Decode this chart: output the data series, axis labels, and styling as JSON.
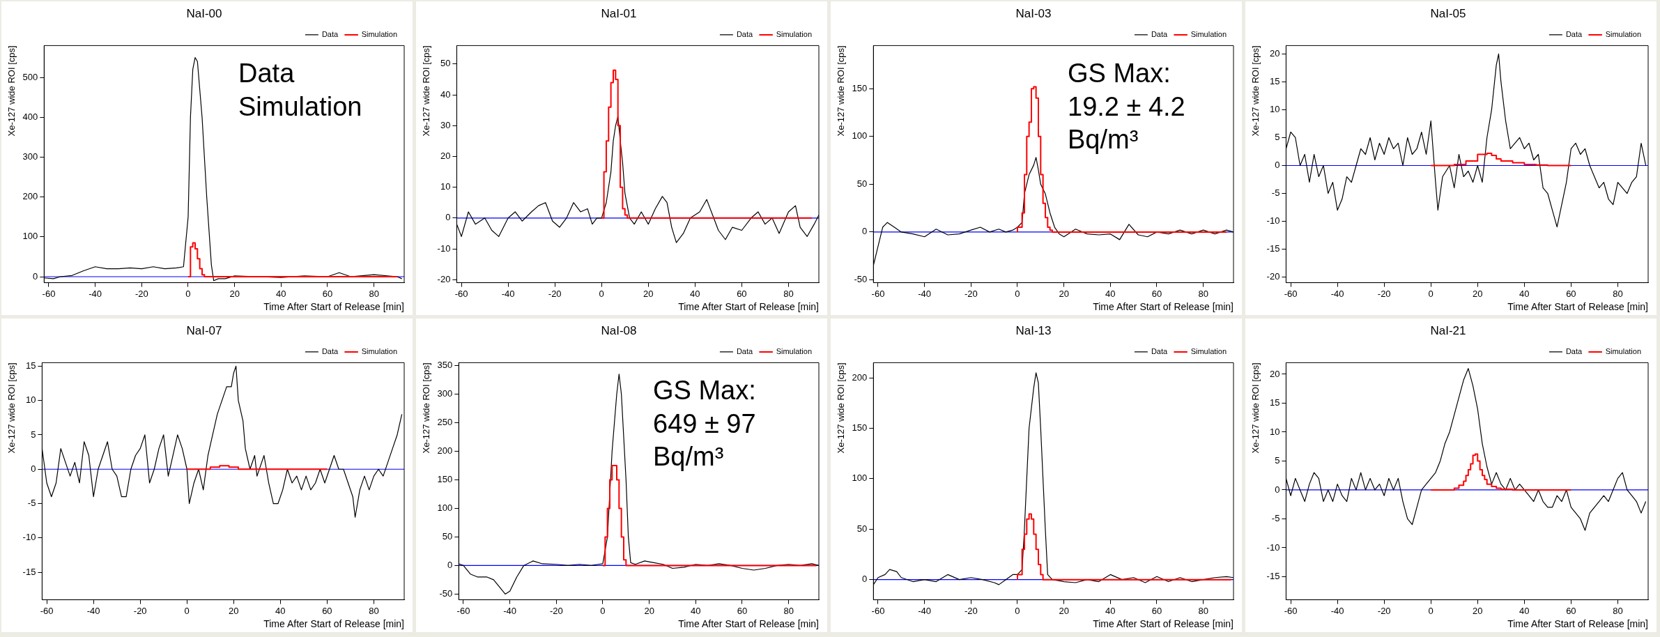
{
  "chart_data": [
    {
      "type": "line",
      "title": "NaI-00",
      "xlabel": "Time After Start of Release [min]",
      "ylabel": "Xe-127 wide ROI [cps]",
      "xlim": [
        -62,
        93
      ],
      "xticks": [
        -60,
        -40,
        -20,
        0,
        20,
        40,
        60,
        80
      ],
      "ylim": [
        -15,
        580
      ],
      "yticks": [
        0,
        100,
        200,
        300,
        400,
        500
      ],
      "grid": false,
      "legend": "top right",
      "marker": "none",
      "annotations": [
        "Data",
        "Simulation"
      ],
      "ref_lines": [
        {
          "axis": "y",
          "value": 0,
          "color": "#0000ff"
        }
      ],
      "series": [
        {
          "name": "Data",
          "color": "#000000",
          "type": "line",
          "x": [
            -62,
            -58,
            -55,
            -50,
            -45,
            -40,
            -35,
            -30,
            -25,
            -20,
            -15,
            -10,
            -5,
            -2,
            0,
            1,
            2,
            3,
            4,
            6,
            8,
            10,
            11,
            13,
            16,
            20,
            30,
            40,
            50,
            60,
            65,
            70,
            80,
            90,
            92
          ],
          "values": [
            -3,
            -5,
            0,
            3,
            15,
            25,
            20,
            20,
            22,
            20,
            25,
            20,
            22,
            25,
            150,
            400,
            520,
            550,
            540,
            400,
            200,
            30,
            -10,
            -5,
            -5,
            2,
            0,
            -2,
            2,
            0,
            10,
            0,
            5,
            0,
            -5
          ]
        },
        {
          "name": "Simulation",
          "color": "#ff0000",
          "type": "step",
          "x": [
            0,
            1,
            2,
            3,
            4,
            5,
            6,
            7,
            8,
            90
          ],
          "values": [
            0,
            0,
            75,
            85,
            70,
            45,
            20,
            5,
            0,
            0
          ]
        }
      ]
    },
    {
      "type": "line",
      "title": "NaI-01",
      "xlabel": "Time After Start of Release [min]",
      "ylabel": "Xe-127 wide ROI [cps]",
      "xlim": [
        -62,
        93
      ],
      "xticks": [
        -60,
        -40,
        -20,
        0,
        20,
        40,
        60,
        80
      ],
      "ylim": [
        -21,
        56
      ],
      "yticks": [
        -20,
        -10,
        0,
        10,
        20,
        30,
        40,
        50
      ],
      "grid": false,
      "legend": "top right",
      "marker": "none",
      "ref_lines": [
        {
          "axis": "y",
          "value": 0,
          "color": "#0000ff"
        }
      ],
      "series": [
        {
          "name": "Data",
          "color": "#000000",
          "type": "line",
          "x": [
            -62,
            -60,
            -57,
            -54,
            -50,
            -47,
            -44,
            -40,
            -37,
            -34,
            -30,
            -27,
            -24,
            -21,
            -18,
            -15,
            -12,
            -9,
            -6,
            -4,
            -2,
            0,
            2,
            4,
            5,
            6,
            7,
            8,
            9,
            10,
            12,
            14,
            17,
            20,
            23,
            26,
            28,
            30,
            32,
            35,
            38,
            42,
            45,
            48,
            50,
            53,
            56,
            60,
            64,
            67,
            70,
            73,
            76,
            80,
            83,
            85,
            88,
            91,
            93
          ],
          "values": [
            -2,
            -6,
            2,
            -2,
            0,
            -4,
            -6,
            0,
            2,
            -1,
            2,
            4,
            5,
            -1,
            -3,
            0,
            5,
            2,
            3,
            -2,
            0,
            0,
            5,
            15,
            25,
            30,
            33,
            25,
            18,
            8,
            0,
            -2,
            2,
            -2,
            3,
            7,
            5,
            -3,
            -8,
            -5,
            0,
            2,
            6,
            0,
            -4,
            -7,
            -3,
            -4,
            0,
            2,
            -2,
            0,
            -5,
            2,
            4,
            -3,
            -6,
            -2,
            1
          ]
        },
        {
          "name": "Simulation",
          "color": "#ff0000",
          "type": "step",
          "x": [
            0,
            1,
            2,
            3,
            4,
            5,
            6,
            7,
            8,
            9,
            10,
            11,
            12,
            90
          ],
          "values": [
            0,
            0,
            15,
            25,
            36,
            44,
            48,
            45,
            30,
            10,
            3,
            1,
            0,
            0
          ]
        }
      ]
    },
    {
      "type": "line",
      "title": "NaI-03",
      "xlabel": "Time After Start of Release [min]",
      "ylabel": "Xe-127 wide ROI [cps]",
      "xlim": [
        -62,
        93
      ],
      "xticks": [
        -60,
        -40,
        -20,
        0,
        20,
        40,
        60,
        80
      ],
      "ylim": [
        -53,
        195
      ],
      "yticks": [
        -50,
        0,
        50,
        100,
        150
      ],
      "grid": false,
      "legend": "top right",
      "marker": "none",
      "annotations": [
        "GS Max: 19.2 ± 4.2 Bq/m³"
      ],
      "ref_lines": [
        {
          "axis": "y",
          "value": 0,
          "color": "#0000ff"
        }
      ],
      "series": [
        {
          "name": "Data",
          "color": "#000000",
          "type": "line",
          "x": [
            -62,
            -60,
            -58,
            -56,
            -53,
            -50,
            -45,
            -40,
            -35,
            -30,
            -25,
            -20,
            -16,
            -12,
            -8,
            -5,
            -2,
            0,
            2,
            3,
            5,
            7,
            8,
            9,
            10,
            12,
            14,
            16,
            18,
            20,
            25,
            30,
            35,
            40,
            44,
            48,
            52,
            56,
            60,
            65,
            70,
            75,
            80,
            85,
            90,
            93
          ],
          "values": [
            -35,
            -15,
            5,
            10,
            5,
            0,
            -2,
            -5,
            3,
            -3,
            -2,
            2,
            5,
            0,
            3,
            0,
            2,
            5,
            10,
            40,
            60,
            70,
            78,
            65,
            50,
            40,
            20,
            5,
            -2,
            -5,
            3,
            -2,
            -3,
            -2,
            -8,
            8,
            -3,
            -5,
            0,
            -2,
            2,
            -2,
            2,
            -2,
            2,
            0
          ]
        },
        {
          "name": "Simulation",
          "color": "#ff0000",
          "type": "step",
          "x": [
            0,
            2,
            3,
            4,
            5,
            6,
            7,
            8,
            9,
            10,
            11,
            12,
            13,
            14,
            15,
            16,
            90
          ],
          "values": [
            0,
            5,
            20,
            60,
            100,
            115,
            150,
            152,
            140,
            100,
            60,
            30,
            15,
            5,
            2,
            0,
            0
          ]
        }
      ]
    },
    {
      "type": "line",
      "title": "NaI-05",
      "xlabel": "Time After Start of Release [min]",
      "ylabel": "Xe-127 wide ROI [cps]",
      "xlim": [
        -62,
        93
      ],
      "xticks": [
        -60,
        -40,
        -20,
        0,
        20,
        40,
        60,
        80
      ],
      "ylim": [
        -21,
        21.5
      ],
      "yticks": [
        -20,
        -15,
        -10,
        -5,
        0,
        5,
        10,
        15,
        20
      ],
      "grid": false,
      "legend": "top right",
      "marker": "none",
      "ref_lines": [
        {
          "axis": "y",
          "value": 0,
          "color": "#0000ff"
        }
      ],
      "series": [
        {
          "name": "Data",
          "color": "#000000",
          "type": "line",
          "x": [
            -62,
            -60,
            -58,
            -56,
            -54,
            -52,
            -50,
            -48,
            -46,
            -44,
            -42,
            -40,
            -38,
            -36,
            -34,
            -32,
            -30,
            -28,
            -26,
            -24,
            -22,
            -20,
            -18,
            -16,
            -14,
            -12,
            -10,
            -8,
            -6,
            -4,
            -2,
            0,
            2,
            3,
            5,
            8,
            10,
            12,
            14,
            16,
            18,
            20,
            22,
            24,
            26,
            28,
            29,
            30,
            32,
            34,
            36,
            38,
            40,
            42,
            44,
            46,
            48,
            50,
            52,
            54,
            56,
            58,
            60,
            62,
            64,
            66,
            68,
            70,
            72,
            74,
            76,
            78,
            80,
            82,
            84,
            86,
            88,
            90,
            92
          ],
          "values": [
            3,
            6,
            5,
            0,
            2,
            -3,
            2,
            -2,
            0,
            -5,
            -3,
            -8,
            -6,
            -2,
            -3,
            0,
            3,
            2,
            5,
            1,
            4,
            2,
            5,
            3,
            4,
            0,
            5,
            2,
            3,
            6,
            2,
            8,
            -3,
            -8,
            -2,
            0,
            -4,
            2,
            -2,
            -1,
            -3,
            0,
            -3,
            5,
            10,
            18,
            20,
            15,
            8,
            3,
            4,
            5,
            3,
            4,
            1,
            2,
            -4,
            -5,
            -8,
            -11,
            -7,
            -3,
            3,
            4,
            2,
            3,
            0,
            -2,
            -4,
            -3,
            -6,
            -7,
            -3,
            -4,
            -5,
            -3,
            -2,
            4,
            0
          ]
        },
        {
          "name": "Simulation",
          "color": "#ff0000",
          "type": "step",
          "x": [
            0,
            10,
            15,
            20,
            24,
            26,
            28,
            30,
            35,
            40,
            45,
            50,
            55,
            60
          ],
          "values": [
            0,
            0,
            0.2,
            0.8,
            2,
            2.2,
            1.8,
            1.2,
            0.8,
            0.5,
            0.2,
            0.1,
            0,
            0
          ]
        }
      ]
    },
    {
      "type": "line",
      "title": "NaI-07",
      "xlabel": "Time After Start of Release [min]",
      "ylabel": "Xe-127 wide ROI [cps]",
      "xlim": [
        -62,
        93
      ],
      "xticks": [
        -60,
        -40,
        -20,
        0,
        20,
        40,
        60,
        80
      ],
      "ylim": [
        -19,
        15.5
      ],
      "yticks": [
        -15,
        -10,
        -5,
        0,
        5,
        10,
        15
      ],
      "grid": false,
      "legend": "top right",
      "marker": "none",
      "ref_lines": [
        {
          "axis": "y",
          "value": 0,
          "color": "#0000ff"
        }
      ],
      "series": [
        {
          "name": "Data",
          "color": "#000000",
          "type": "line",
          "x": [
            -62,
            -60,
            -58,
            -56,
            -54,
            -52,
            -50,
            -48,
            -46,
            -44,
            -42,
            -40,
            -38,
            -36,
            -34,
            -32,
            -30,
            -28,
            -26,
            -24,
            -22,
            -20,
            -18,
            -16,
            -14,
            -12,
            -10,
            -8,
            -6,
            -4,
            -2,
            0,
            1,
            3,
            5,
            7,
            9,
            11,
            13,
            15,
            17,
            19,
            20,
            21,
            22,
            24,
            25,
            27,
            29,
            30,
            33,
            35,
            37,
            39,
            41,
            43,
            45,
            47,
            49,
            51,
            53,
            55,
            57,
            59,
            61,
            63,
            65,
            67,
            69,
            71,
            72,
            74,
            76,
            78,
            80,
            82,
            84,
            86,
            88,
            90,
            92
          ],
          "values": [
            3,
            -2,
            -4,
            -2,
            3,
            1,
            -1,
            1,
            -2,
            4,
            2,
            -4,
            0,
            2,
            4,
            0,
            -1,
            -4,
            -4,
            0,
            2,
            3,
            5,
            -2,
            0,
            3,
            5,
            -1,
            2,
            5,
            3,
            0,
            -5,
            -2,
            0,
            -3,
            2,
            5,
            8,
            10,
            12,
            12,
            14,
            15,
            10,
            7,
            3,
            0,
            2,
            -1,
            2,
            -2,
            -5,
            -5,
            -3,
            0,
            -2,
            -1,
            -3,
            -1,
            -3,
            -2,
            0,
            -2,
            0,
            2,
            0,
            0,
            -2,
            -4,
            -7,
            -3,
            -1,
            -3,
            -1,
            0,
            -1,
            1,
            3,
            5,
            8
          ]
        },
        {
          "name": "Simulation",
          "color": "#ff0000",
          "type": "step",
          "x": [
            0,
            10,
            14,
            18,
            22,
            26,
            60
          ],
          "values": [
            0,
            0,
            0.3,
            0.5,
            0.3,
            0,
            0
          ]
        }
      ]
    },
    {
      "type": "line",
      "title": "NaI-08",
      "xlabel": "Time After Start of Release [min]",
      "ylabel": "Xe-127 wide ROI [cps]",
      "xlim": [
        -62,
        93
      ],
      "xticks": [
        -60,
        -40,
        -20,
        0,
        20,
        40,
        60,
        80
      ],
      "ylim": [
        -60,
        355
      ],
      "yticks": [
        -50,
        0,
        50,
        100,
        150,
        200,
        250,
        300,
        350
      ],
      "grid": false,
      "legend": "top right",
      "marker": "none",
      "annotations": [
        "GS Max: 649 ± 97 Bq/m³"
      ],
      "ref_lines": [
        {
          "axis": "y",
          "value": 0,
          "color": "#0000ff"
        }
      ],
      "series": [
        {
          "name": "Data",
          "color": "#000000",
          "type": "line",
          "x": [
            -62,
            -60,
            -57,
            -54,
            -50,
            -47,
            -44,
            -42,
            -40,
            -37,
            -34,
            -30,
            -26,
            -20,
            -15,
            -10,
            -5,
            -2,
            0,
            2,
            4,
            6,
            7,
            8,
            10,
            11,
            12,
            14,
            18,
            22,
            26,
            30,
            35,
            40,
            45,
            50,
            55,
            60,
            65,
            70,
            75,
            80,
            85,
            90,
            93
          ],
          "values": [
            3,
            0,
            -15,
            -20,
            -20,
            -25,
            -40,
            -50,
            -45,
            -20,
            0,
            8,
            3,
            2,
            0,
            2,
            0,
            2,
            3,
            50,
            200,
            300,
            335,
            300,
            150,
            50,
            5,
            2,
            8,
            5,
            2,
            -5,
            -3,
            2,
            0,
            3,
            0,
            -5,
            -8,
            -5,
            0,
            2,
            0,
            3,
            0
          ]
        },
        {
          "name": "Simulation",
          "color": "#ff0000",
          "type": "step",
          "x": [
            0,
            1,
            2,
            3,
            4,
            5,
            6,
            7,
            8,
            9,
            10,
            11,
            92
          ],
          "values": [
            0,
            0,
            50,
            100,
            150,
            175,
            175,
            150,
            100,
            50,
            10,
            0,
            0
          ]
        }
      ]
    },
    {
      "type": "line",
      "title": "NaI-13",
      "xlabel": "Time After Start of Release [min]",
      "ylabel": "Xe-127 wide ROI [cps]",
      "xlim": [
        -62,
        93
      ],
      "xticks": [
        -60,
        -40,
        -20,
        0,
        20,
        40,
        60,
        80
      ],
      "ylim": [
        -20,
        215
      ],
      "yticks": [
        0,
        50,
        100,
        150,
        200
      ],
      "grid": false,
      "legend": "top right",
      "marker": "none",
      "ref_lines": [
        {
          "axis": "y",
          "value": 0,
          "color": "#0000ff"
        }
      ],
      "series": [
        {
          "name": "Data",
          "color": "#000000",
          "type": "line",
          "x": [
            -62,
            -60,
            -57,
            -55,
            -52,
            -50,
            -45,
            -40,
            -35,
            -30,
            -25,
            -20,
            -15,
            -10,
            -8,
            -5,
            -2,
            0,
            2,
            3,
            5,
            7,
            8,
            9,
            10,
            12,
            13,
            15,
            20,
            25,
            30,
            35,
            40,
            45,
            50,
            55,
            60,
            65,
            70,
            75,
            80,
            85,
            90,
            93
          ],
          "values": [
            -5,
            2,
            5,
            10,
            8,
            2,
            -2,
            0,
            -2,
            5,
            0,
            2,
            0,
            -3,
            -5,
            0,
            5,
            5,
            10,
            50,
            150,
            190,
            205,
            195,
            150,
            50,
            5,
            0,
            -2,
            -3,
            0,
            -2,
            5,
            0,
            2,
            -3,
            3,
            -2,
            2,
            -2,
            0,
            2,
            3,
            2
          ]
        },
        {
          "name": "Simulation",
          "color": "#ff0000",
          "type": "step",
          "x": [
            0,
            2,
            3,
            4,
            5,
            6,
            7,
            8,
            9,
            10,
            11,
            12,
            92
          ],
          "values": [
            0,
            5,
            30,
            45,
            60,
            65,
            60,
            45,
            30,
            15,
            5,
            0,
            0
          ]
        }
      ]
    },
    {
      "type": "line",
      "title": "NaI-21",
      "xlabel": "Time After Start of Release [min]",
      "ylabel": "Xe-127 wide ROI [cps]",
      "xlim": [
        -62,
        93
      ],
      "xticks": [
        -60,
        -40,
        -20,
        0,
        20,
        40,
        60,
        80
      ],
      "ylim": [
        -19,
        22
      ],
      "yticks": [
        -15,
        -10,
        -5,
        0,
        5,
        10,
        15,
        20
      ],
      "grid": false,
      "legend": "top right",
      "marker": "none",
      "ref_lines": [
        {
          "axis": "y",
          "value": 0,
          "color": "#0000ff"
        }
      ],
      "series": [
        {
          "name": "Data",
          "color": "#000000",
          "type": "line",
          "x": [
            -62,
            -60,
            -58,
            -56,
            -54,
            -52,
            -50,
            -48,
            -46,
            -44,
            -42,
            -40,
            -38,
            -36,
            -34,
            -32,
            -30,
            -28,
            -26,
            -24,
            -22,
            -20,
            -18,
            -16,
            -14,
            -12,
            -10,
            -8,
            -6,
            -4,
            -2,
            0,
            2,
            4,
            6,
            8,
            10,
            12,
            14,
            16,
            18,
            20,
            22,
            24,
            26,
            28,
            30,
            32,
            34,
            36,
            38,
            40,
            42,
            44,
            46,
            48,
            50,
            52,
            54,
            56,
            58,
            60,
            62,
            64,
            66,
            68,
            70,
            72,
            74,
            76,
            78,
            80,
            82,
            84,
            86,
            88,
            90,
            92
          ],
          "values": [
            2,
            -1,
            2,
            0,
            -2,
            1,
            3,
            2,
            -2,
            0,
            -2,
            1,
            -1,
            -2,
            2,
            0,
            3,
            0,
            2,
            0,
            1,
            -1,
            2,
            0,
            2,
            -2,
            -5,
            -6,
            -3,
            0,
            1,
            2,
            3,
            5,
            8,
            10,
            13,
            16,
            19,
            21,
            18,
            14,
            8,
            4,
            1,
            3,
            1,
            0,
            2,
            0,
            1,
            0,
            -1,
            -2,
            0,
            -2,
            -3,
            -3,
            -1,
            -2,
            0,
            -3,
            -4,
            -5,
            -7,
            -4,
            -3,
            -2,
            -1,
            -2,
            0,
            2,
            3,
            0,
            -1,
            -2,
            -4,
            -2
          ]
        },
        {
          "name": "Simulation",
          "color": "#ff0000",
          "type": "step",
          "x": [
            0,
            10,
            12,
            14,
            15,
            16,
            17,
            18,
            19,
            20,
            21,
            22,
            23,
            24,
            26,
            28,
            30,
            35,
            40,
            50,
            60
          ],
          "values": [
            0,
            0,
            0.3,
            0.8,
            1.5,
            2.5,
            3.5,
            4.5,
            6,
            6.2,
            5,
            3.5,
            2.5,
            1.8,
            1,
            0.6,
            0.3,
            0.1,
            0,
            0,
            0
          ]
        }
      ]
    }
  ]
}
